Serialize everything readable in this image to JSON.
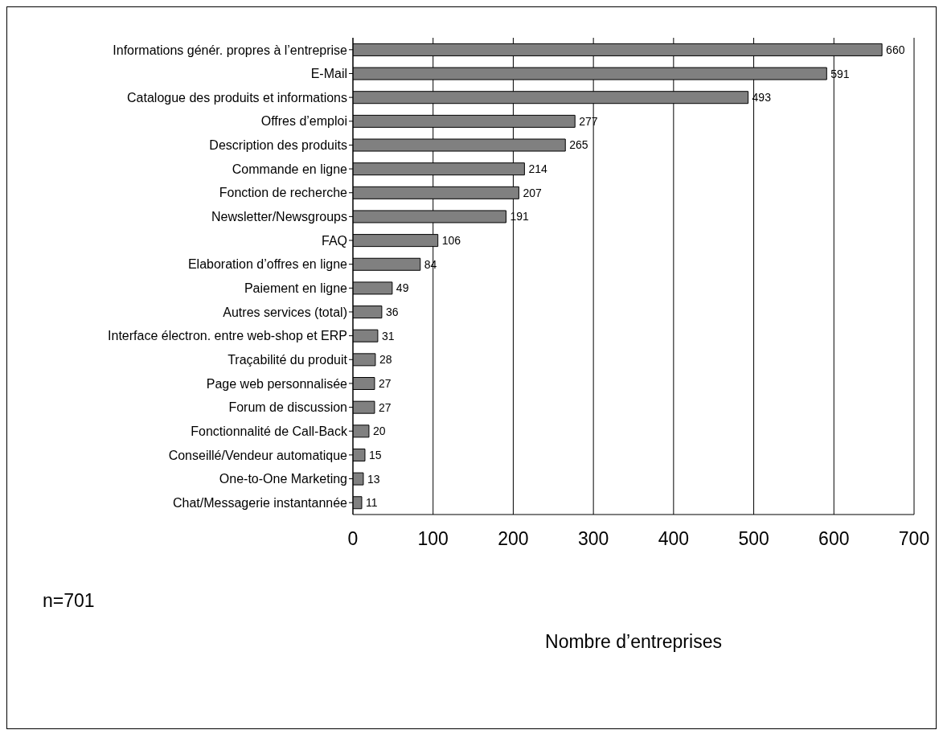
{
  "chart_data": {
    "type": "bar",
    "orientation": "horizontal",
    "xlabel": "Nombre d’entreprises",
    "categories": [
      "Informations génér. propres à l’entreprise",
      "E-Mail",
      "Catalogue des produits et informations",
      "Offres d’emploi",
      "Description des produits",
      "Commande en ligne",
      "Fonction de recherche",
      "Newsletter/Newsgroups",
      "FAQ",
      "Elaboration d’offres en ligne",
      "Paiement en ligne",
      "Autres services (total)",
      "Interface électron. entre web-shop et ERP",
      "Traçabilité du produit",
      "Page web personnalisée",
      "Forum de discussion",
      "Fonctionnalité de Call-Back",
      "Conseillé/Vendeur automatique",
      "One-to-One Marketing",
      "Chat/Messagerie instantannée"
    ],
    "values": [
      660,
      591,
      493,
      277,
      265,
      214,
      207,
      191,
      106,
      84,
      49,
      36,
      31,
      28,
      27,
      27,
      20,
      15,
      13,
      11
    ],
    "color": "#808080",
    "xlim": [
      0,
      700
    ],
    "xticks": [
      0,
      100,
      200,
      300,
      400,
      500,
      600,
      700
    ],
    "grid": "x",
    "data_labels": true,
    "legend": false,
    "annotations": [
      "n=701"
    ]
  }
}
